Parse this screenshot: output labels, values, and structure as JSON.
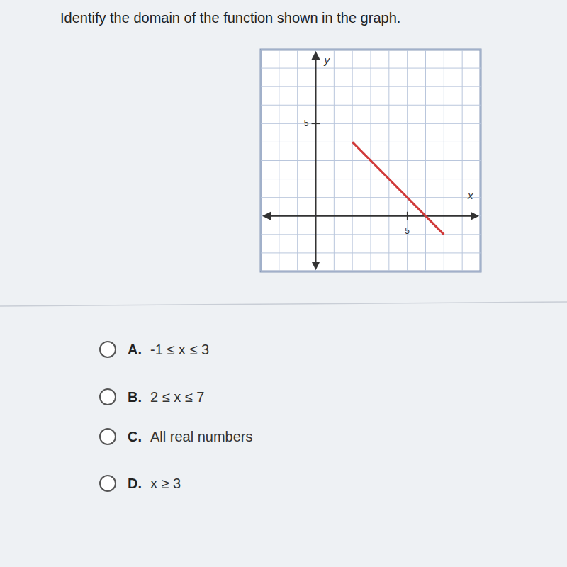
{
  "question": "Identify the domain of the function shown in the graph.",
  "chart_data": {
    "type": "line",
    "x_label": "x",
    "y_label": "y",
    "x": [
      2,
      7
    ],
    "values": [
      4,
      -1
    ],
    "color": "#d03a3a",
    "xlim": [
      -3,
      9
    ],
    "ylim": [
      -3,
      9
    ],
    "xticks": [
      5
    ],
    "yticks": [
      5
    ],
    "grid": true
  },
  "options": [
    {
      "letter": "A.",
      "text": "-1 ≤ x ≤ 3"
    },
    {
      "letter": "B.",
      "text": "2 ≤ x ≤ 7"
    },
    {
      "letter": "C.",
      "text": "All real numbers"
    },
    {
      "letter": "D.",
      "text": "x ≥ 3"
    }
  ]
}
